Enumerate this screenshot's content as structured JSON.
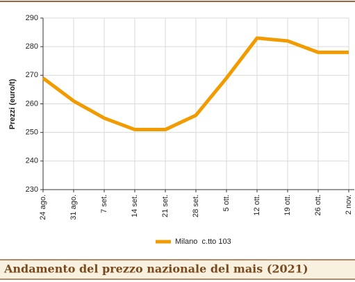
{
  "chart_data": {
    "type": "line",
    "title": "Andamento del prezzo nazionale del mais (2021)",
    "y_label": "Prezzi (euro/t)",
    "categories": [
      "24 ago.",
      "31 ago.",
      "7 set.",
      "14 set.",
      "21 set.",
      "28 set.",
      "5 ott.",
      "12 ott.",
      "19 ott.",
      "26 ott.",
      "2 nov."
    ],
    "series": [
      {
        "name": "Milano  c.tto 103",
        "color": "#f29b00",
        "values": [
          269,
          261,
          255,
          251,
          251,
          256,
          269,
          283,
          282,
          278,
          278
        ]
      }
    ],
    "ylim": [
      230,
      290
    ],
    "yticks": [
      230,
      240,
      250,
      260,
      270,
      280,
      290
    ],
    "grid": true,
    "legend": "bottom"
  }
}
